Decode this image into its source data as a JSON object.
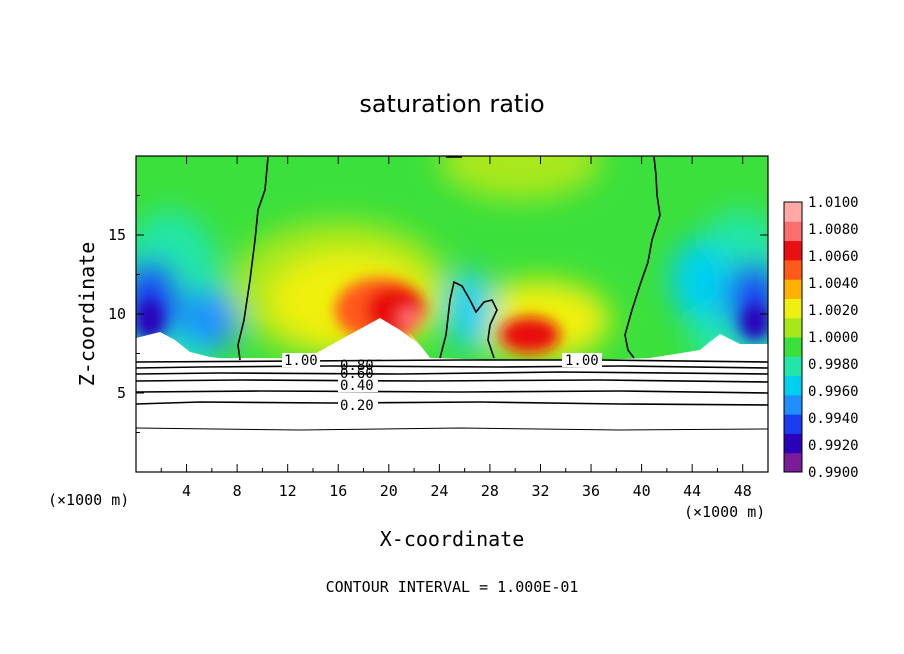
{
  "chart_data": {
    "type": "heatmap",
    "title": "saturation ratio",
    "xlabel": "X-coordinate",
    "ylabel": "Z-coordinate",
    "x_unit_left": "(×1000 m)",
    "x_unit_right": "(×1000 m)",
    "xlim": [
      0,
      50
    ],
    "ylim": [
      0,
      20
    ],
    "x_ticks": [
      "4",
      "8",
      "12",
      "16",
      "20",
      "24",
      "28",
      "32",
      "36",
      "40",
      "44",
      "48"
    ],
    "y_ticks": [
      "5",
      "10",
      "15"
    ],
    "footer": "CONTOUR INTERVAL = 1.000E-01",
    "colorbar": {
      "min": 0.99,
      "max": 1.01,
      "tick_labels": [
        "1.0100",
        "1.0080",
        "1.0060",
        "1.0040",
        "1.0020",
        "1.0000",
        "0.9980",
        "0.9960",
        "0.9940",
        "0.9920",
        "0.9900"
      ],
      "colors": [
        "#7a1b9a",
        "#2a00b8",
        "#1a3cf0",
        "#1f8fff",
        "#00d0f0",
        "#22e6a8",
        "#3ce03c",
        "#a8e81a",
        "#f0f010",
        "#ffb000",
        "#ff5a1a",
        "#e81010",
        "#ff6e6e",
        "#ffa8a8"
      ]
    },
    "contour_labels": [
      "1.00",
      "0.80",
      "0.60",
      "0.40",
      "0.20"
    ],
    "field_samples": [
      {
        "x": 2,
        "z": 9,
        "value": 0.9915
      },
      {
        "x": 3,
        "z": 14,
        "value": 0.9962
      },
      {
        "x": 8,
        "z": 16,
        "value": 0.9985
      },
      {
        "x": 16,
        "z": 16,
        "value": 1.0002
      },
      {
        "x": 19,
        "z": 10,
        "value": 1.0068
      },
      {
        "x": 22,
        "z": 12,
        "value": 1.005
      },
      {
        "x": 26,
        "z": 9,
        "value": 0.9965
      },
      {
        "x": 30,
        "z": 9,
        "value": 1.0062
      },
      {
        "x": 36,
        "z": 14,
        "value": 1.0004
      },
      {
        "x": 46,
        "z": 9,
        "value": 0.9915
      },
      {
        "x": 47,
        "z": 14,
        "value": 0.9962
      }
    ]
  }
}
